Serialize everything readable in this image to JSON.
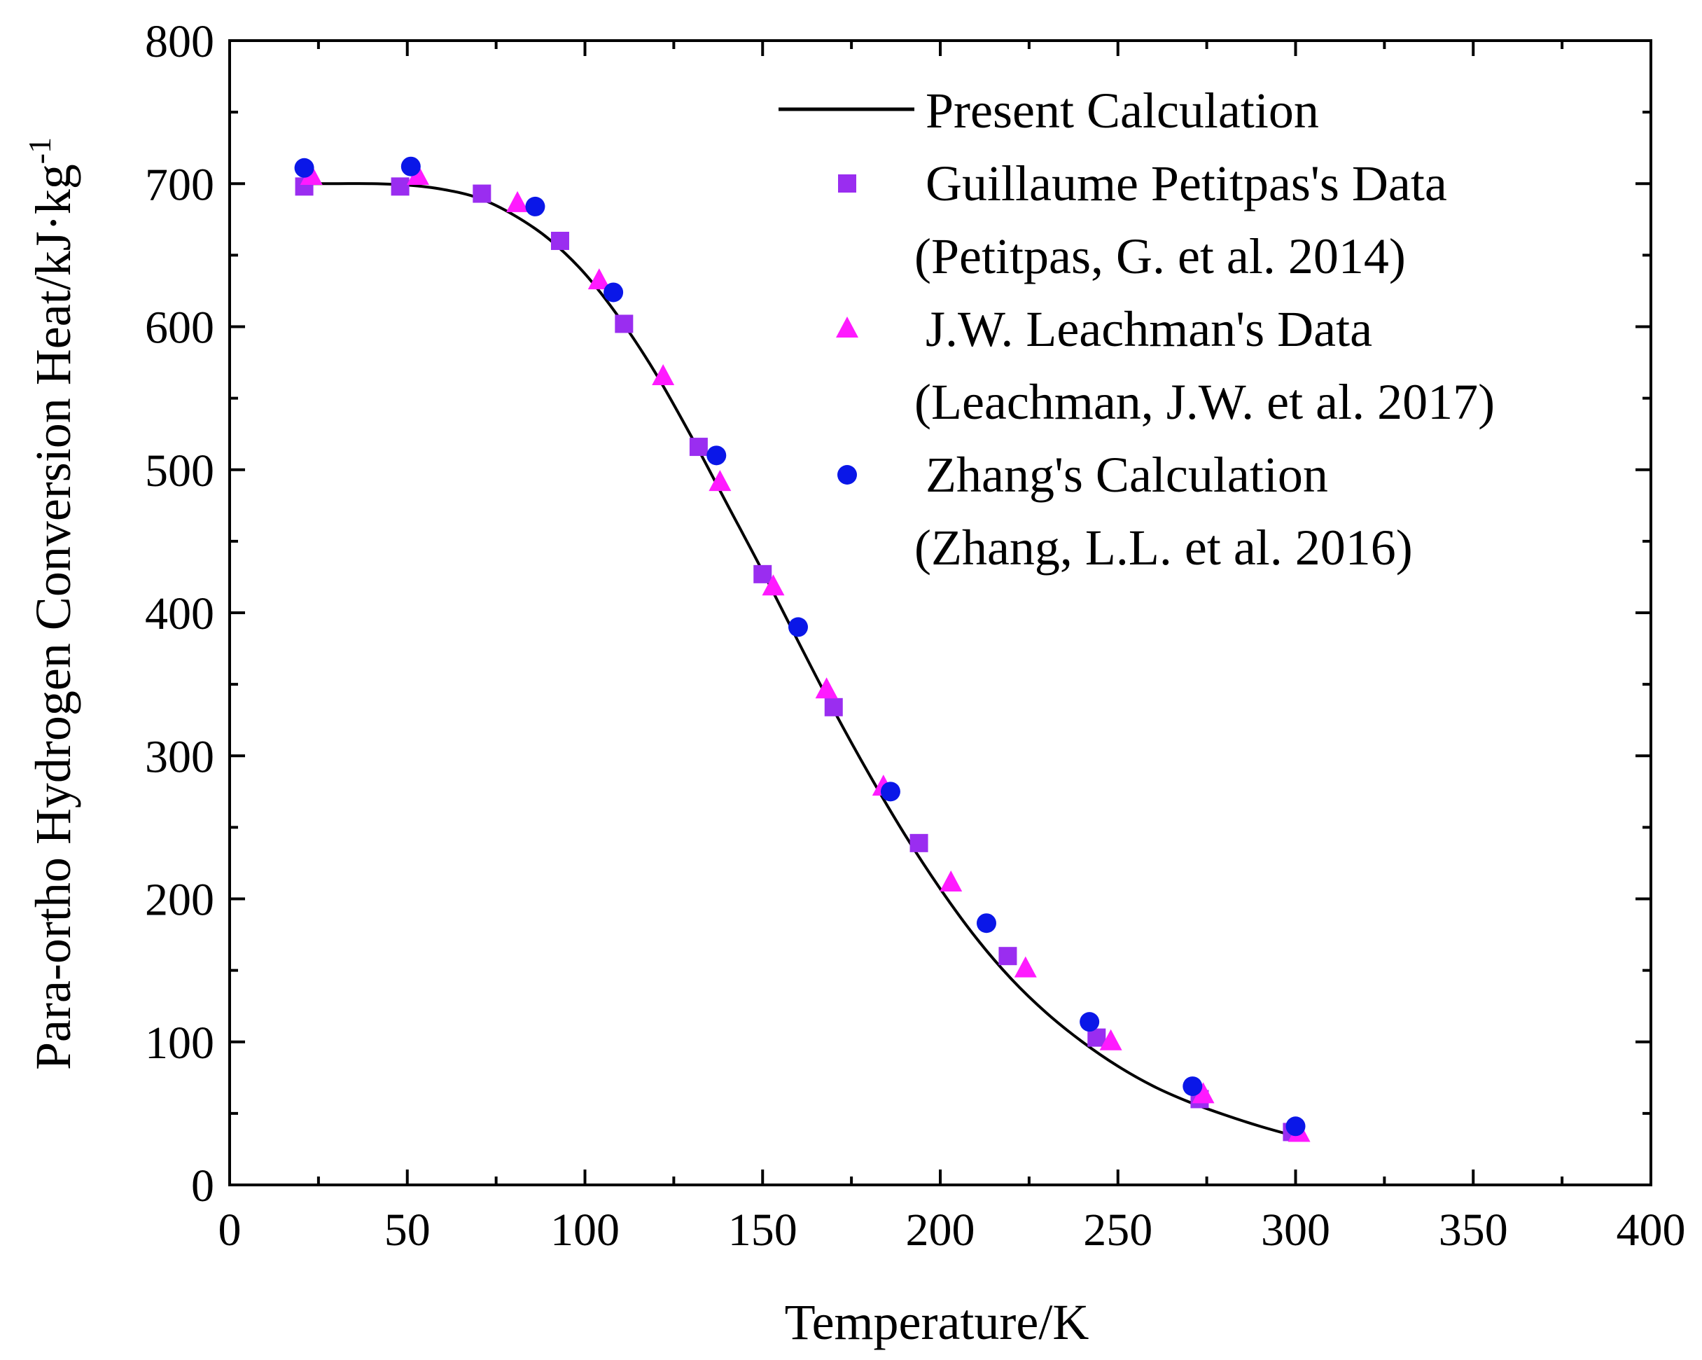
{
  "chart_data": {
    "type": "scatter",
    "title": "",
    "xlabel": "Temperature/K",
    "ylabel_main": "Para-ortho Hydrogen Conversion Heat/kJ·kg",
    "ylabel_sup": "-1",
    "xlim": [
      0,
      400
    ],
    "ylim": [
      0,
      800
    ],
    "xticks": [
      0,
      50,
      100,
      150,
      200,
      250,
      300,
      350,
      400
    ],
    "yticks": [
      0,
      100,
      200,
      300,
      400,
      500,
      600,
      700,
      800
    ],
    "grid": false,
    "legend_position": "top-right",
    "series": [
      {
        "name": "Present Calculation",
        "kind": "line",
        "color": "#000000",
        "x": [
          20,
          30,
          40,
          50,
          60,
          70,
          80,
          90,
          100,
          110,
          120,
          130,
          140,
          150,
          160,
          170,
          180,
          190,
          200,
          210,
          220,
          230,
          240,
          250,
          260,
          270,
          280,
          290,
          300
        ],
        "y": [
          700,
          700,
          700,
          699,
          696,
          690,
          678,
          661,
          637,
          605,
          567,
          523,
          476,
          429,
          380,
          332,
          287,
          245,
          207,
          173,
          144,
          120,
          100,
          83,
          69,
          58,
          49,
          41,
          34
        ]
      },
      {
        "name": "Guillaume Petitpas's Data",
        "sub": "(Petitpas, G. et al. 2014)",
        "kind": "square",
        "color": "#9a2df0",
        "x": [
          21,
          48,
          71,
          93,
          111,
          132,
          150,
          170,
          194,
          219,
          244,
          273,
          299
        ],
        "y": [
          698,
          698,
          693,
          660,
          602,
          516,
          427,
          334,
          239,
          160,
          103,
          60,
          37
        ]
      },
      {
        "name": "J.W. Leachman's Data",
        "sub": "(Leachman, J.W. et al. 2017)",
        "kind": "triangle",
        "color": "#ff1aff",
        "x": [
          23,
          53,
          81,
          104,
          122,
          138,
          153,
          168,
          184,
          203,
          224,
          248,
          274,
          301
        ],
        "y": [
          705,
          705,
          686,
          632,
          565,
          491,
          418,
          346,
          278,
          211,
          151,
          100,
          63,
          36
        ]
      },
      {
        "name": "Zhang's Calculation",
        "sub": "(Zhang, L.L. et al. 2016)",
        "kind": "circle",
        "color": "#0a17e8",
        "x": [
          21,
          51,
          86,
          108,
          137,
          160,
          186,
          213,
          242,
          271,
          300
        ],
        "y": [
          711,
          712,
          684,
          624,
          510,
          390,
          275,
          183,
          114,
          69,
          41
        ]
      }
    ]
  }
}
